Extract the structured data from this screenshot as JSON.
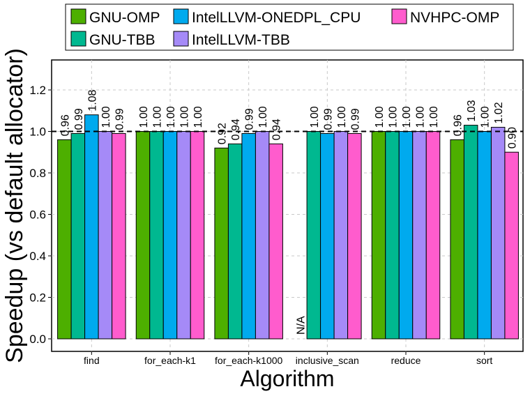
{
  "chart_data": {
    "type": "bar",
    "xlabel": "Algorithm",
    "ylabel": "Speedup (vs default allocator)",
    "ylim": [
      -0.06,
      1.34
    ],
    "yticks": [
      "0.0",
      "0.2",
      "0.4",
      "0.6",
      "0.8",
      "1.0",
      "1.2"
    ],
    "ytick_values": [
      0,
      0.2,
      0.4,
      0.6,
      0.8,
      1.0,
      1.2
    ],
    "reference_line": 1.0,
    "grid": true,
    "legend_position": "top",
    "categories": [
      "find",
      "for_each-k1",
      "for_each-k1000",
      "inclusive_scan",
      "reduce",
      "sort"
    ],
    "series": [
      {
        "name": "GNU-OMP",
        "color": "#4daf00",
        "values": [
          0.96,
          1.0,
          0.92,
          null,
          1.0,
          0.96
        ],
        "labels": [
          "0.96",
          "1.00",
          "0.92",
          "N/A",
          "1.00",
          "0.96"
        ]
      },
      {
        "name": "GNU-TBB",
        "color": "#00b890",
        "values": [
          0.99,
          1.0,
          0.94,
          1.0,
          1.0,
          1.03
        ],
        "labels": [
          "0.99",
          "1.00",
          "0.94",
          "1.00",
          "1.00",
          "1.03"
        ]
      },
      {
        "name": "IntelLLVM-ONEDPL_CPU",
        "color": "#00aaee",
        "values": [
          1.08,
          1.0,
          0.99,
          0.99,
          1.0,
          1.0
        ],
        "labels": [
          "1.08",
          "1.00",
          "0.99",
          "0.99",
          "1.00",
          "1.00"
        ]
      },
      {
        "name": "IntelLLVM-TBB",
        "color": "#a58af7",
        "values": [
          1.0,
          1.0,
          1.0,
          1.0,
          1.0,
          1.02
        ],
        "labels": [
          "1.00",
          "1.00",
          "1.00",
          "1.00",
          "1.00",
          "1.02"
        ]
      },
      {
        "name": "NVHPC-OMP",
        "color": "#ff5ccd",
        "values": [
          0.99,
          1.0,
          0.94,
          0.99,
          1.0,
          0.9
        ],
        "labels": [
          "0.99",
          "1.00",
          "0.94",
          "0.99",
          "1.00",
          "0.90"
        ]
      }
    ]
  }
}
